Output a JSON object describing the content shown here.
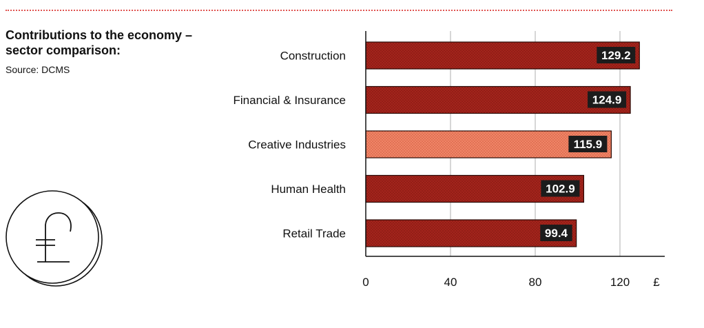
{
  "header": {
    "title": "Contributions to the economy – sector comparison:",
    "source": "Source: DCMS"
  },
  "icons": {
    "coin": "pound-coin-icon"
  },
  "colors": {
    "bar": "#a8261e",
    "highlight": "#ee7a5f",
    "label_bg": "#1c1c1c",
    "rule": "#e0524f"
  },
  "chart_data": {
    "type": "bar",
    "orientation": "horizontal",
    "categories": [
      "Construction",
      "Financial & Insurance",
      "Creative Industries",
      "Human Health",
      "Retail Trade"
    ],
    "values": [
      129.2,
      124.9,
      115.9,
      102.9,
      99.4
    ],
    "value_labels": [
      "129.2",
      "124.9",
      "115.9",
      "102.9",
      "99.4"
    ],
    "highlight": "Creative Industries",
    "xlim": [
      0,
      140
    ],
    "xticks": [
      0,
      40,
      80,
      120
    ],
    "tick_labels": [
      "0",
      "40",
      "80",
      "120"
    ],
    "unit_label": "£",
    "grid": true
  }
}
